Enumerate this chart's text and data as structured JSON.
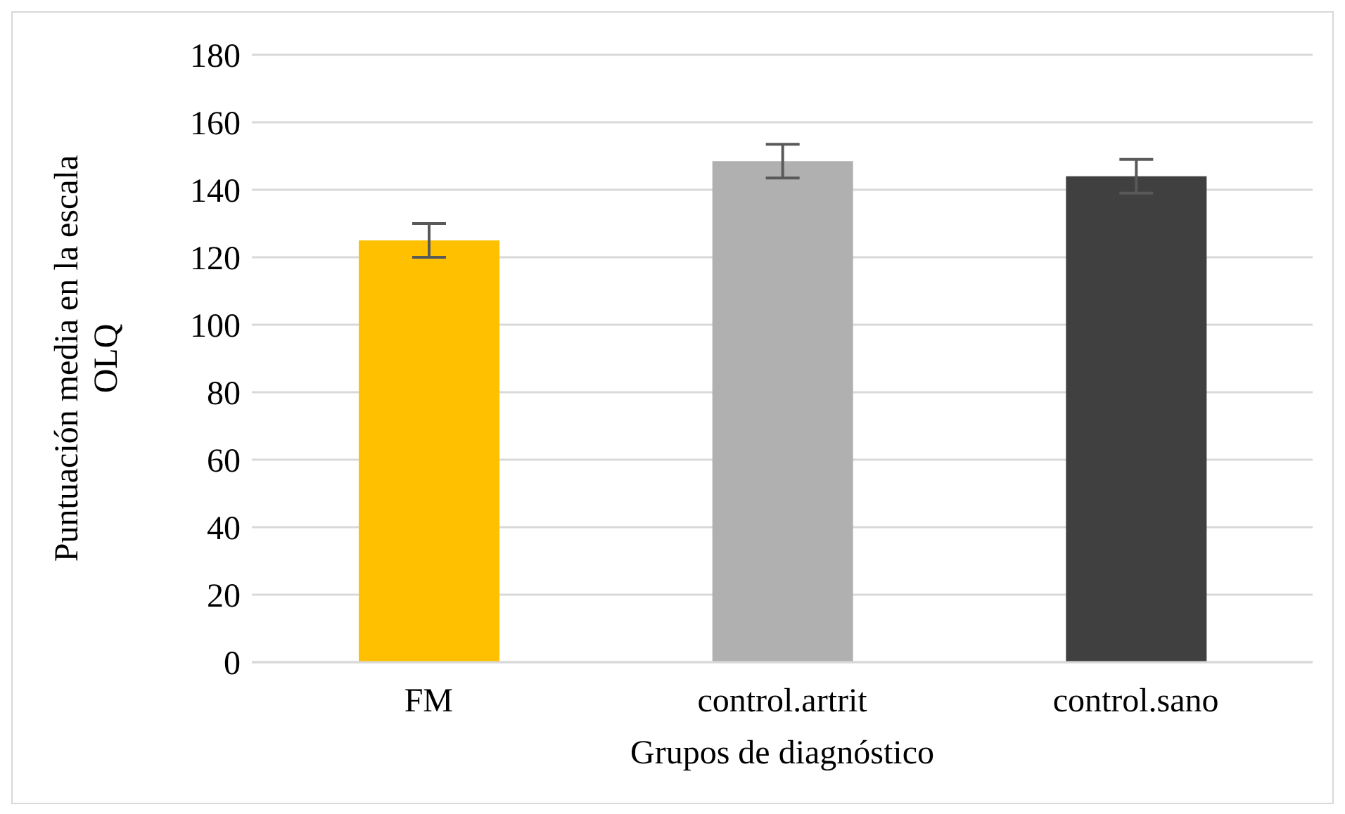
{
  "chart_data": {
    "type": "bar",
    "xlabel": "Grupos de diagnóstico",
    "ylabel": "Puntuación media en la escala OLQ",
    "categories": [
      "FM",
      "control.artrit",
      "control.sano"
    ],
    "values": [
      125,
      148.5,
      144
    ],
    "colors": [
      "#ffc000",
      "#b0b0b0",
      "#404040"
    ],
    "errors": [
      5,
      5,
      5
    ],
    "ylim": [
      0,
      180
    ],
    "yticks": [
      0,
      20,
      40,
      60,
      80,
      100,
      120,
      140,
      160,
      180
    ],
    "grid": "y"
  }
}
